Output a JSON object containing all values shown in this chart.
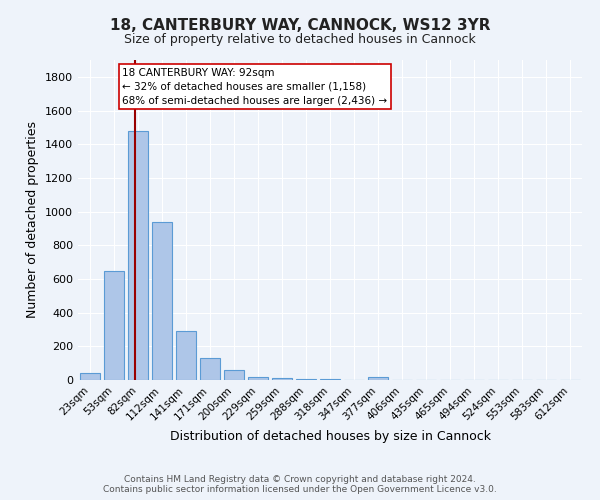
{
  "title": "18, CANTERBURY WAY, CANNOCK, WS12 3YR",
  "subtitle": "Size of property relative to detached houses in Cannock",
  "xlabel": "Distribution of detached houses by size in Cannock",
  "ylabel": "Number of detached properties",
  "bin_labels": [
    "23sqm",
    "53sqm",
    "82sqm",
    "112sqm",
    "141sqm",
    "171sqm",
    "200sqm",
    "229sqm",
    "259sqm",
    "288sqm",
    "318sqm",
    "347sqm",
    "377sqm",
    "406sqm",
    "435sqm",
    "465sqm",
    "494sqm",
    "524sqm",
    "553sqm",
    "583sqm",
    "612sqm"
  ],
  "bin_values": [
    40,
    650,
    1480,
    940,
    290,
    130,
    60,
    20,
    10,
    5,
    3,
    2,
    15,
    0,
    0,
    0,
    0,
    0,
    0,
    0,
    0
  ],
  "bar_color": "#aec6e8",
  "bar_edge_color": "#5b9bd5",
  "background_color": "#eef3fa",
  "grid_color": "#ffffff",
  "property_line_color": "#990000",
  "annotation_text": "18 CANTERBURY WAY: 92sqm\n← 32% of detached houses are smaller (1,158)\n68% of semi-detached houses are larger (2,436) →",
  "annotation_box_color": "#ffffff",
  "annotation_box_edge": "#cc0000",
  "footer": "Contains HM Land Registry data © Crown copyright and database right 2024.\nContains public sector information licensed under the Open Government Licence v3.0.",
  "ylim": [
    0,
    1900
  ],
  "yticks": [
    0,
    200,
    400,
    600,
    800,
    1000,
    1200,
    1400,
    1600,
    1800
  ],
  "title_fontsize": 11,
  "subtitle_fontsize": 9,
  "xlabel_fontsize": 9,
  "ylabel_fontsize": 9,
  "tick_fontsize": 8,
  "xtick_fontsize": 7.5,
  "footer_fontsize": 6.5,
  "annotation_fontsize": 7.5
}
